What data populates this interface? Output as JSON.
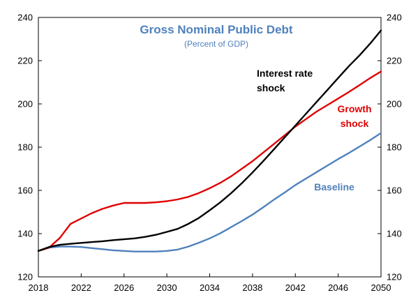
{
  "chart_data": {
    "type": "line",
    "title": "Gross Nominal Public Debt",
    "subtitle": "(Percent of GDP)",
    "title_color": "#4f81bd",
    "subtitle_color": "#4f81bd",
    "xlabel": "",
    "ylabel": "",
    "xlim": [
      2018,
      2050
    ],
    "ylim": [
      120,
      240
    ],
    "x_ticks": [
      2018,
      2022,
      2026,
      2030,
      2034,
      2038,
      2042,
      2046,
      2050
    ],
    "y_ticks": [
      120,
      140,
      160,
      180,
      200,
      220,
      240
    ],
    "y_axis_both_sides": true,
    "grid": false,
    "series": [
      {
        "name": "Baseline",
        "color": "#4f81bd",
        "x": [
          2018,
          2019,
          2020,
          2021,
          2022,
          2023,
          2024,
          2025,
          2026,
          2027,
          2028,
          2029,
          2030,
          2031,
          2032,
          2033,
          2034,
          2035,
          2036,
          2037,
          2038,
          2039,
          2040,
          2041,
          2042,
          2043,
          2044,
          2045,
          2046,
          2047,
          2048,
          2049,
          2050
        ],
        "values": [
          132,
          133.5,
          134,
          134,
          133.8,
          133.3,
          132.8,
          132.3,
          132,
          131.7,
          131.7,
          131.7,
          132,
          132.6,
          134,
          135.8,
          137.8,
          140.2,
          143,
          145.8,
          148.8,
          152.2,
          155.7,
          159,
          162.5,
          165.5,
          168.5,
          171.5,
          174.5,
          177.3,
          180.3,
          183.3,
          186.5
        ],
        "label": "Baseline",
        "label_color": "#4f81bd"
      },
      {
        "name": "Growth shock",
        "color": "#e00000",
        "x": [
          2018,
          2019,
          2020,
          2021,
          2022,
          2023,
          2024,
          2025,
          2026,
          2027,
          2028,
          2029,
          2030,
          2031,
          2032,
          2033,
          2034,
          2035,
          2036,
          2037,
          2038,
          2039,
          2040,
          2041,
          2042,
          2043,
          2044,
          2045,
          2046,
          2047,
          2048,
          2049,
          2050
        ],
        "values": [
          132,
          133.5,
          138,
          144.5,
          147,
          149.5,
          151.5,
          153,
          154.2,
          154.2,
          154.2,
          154.5,
          155,
          155.8,
          157,
          158.8,
          161,
          163.5,
          166.5,
          170,
          173.5,
          177.5,
          181.5,
          185.5,
          189.5,
          193,
          196.5,
          199.5,
          202.5,
          205.5,
          208.7,
          212,
          215
        ],
        "label": [
          "Growth",
          "shock"
        ],
        "label_color": "#e00000"
      },
      {
        "name": "Interest rate shock",
        "color": "#000000",
        "x": [
          2018,
          2019,
          2020,
          2021,
          2022,
          2023,
          2024,
          2025,
          2026,
          2027,
          2028,
          2029,
          2030,
          2031,
          2032,
          2033,
          2034,
          2035,
          2036,
          2037,
          2038,
          2039,
          2040,
          2041,
          2042,
          2043,
          2044,
          2045,
          2046,
          2047,
          2048,
          2049,
          2050
        ],
        "values": [
          132,
          133.8,
          134.8,
          135.3,
          135.7,
          136.1,
          136.5,
          137,
          137.4,
          137.8,
          138.5,
          139.5,
          140.8,
          142.2,
          144.5,
          147.3,
          150.8,
          154.5,
          158.7,
          163.3,
          168.3,
          173.5,
          179,
          184.5,
          190,
          195.5,
          201,
          206.5,
          212,
          217.5,
          222.5,
          228,
          234
        ],
        "label": [
          "Interest rate",
          "shock"
        ],
        "label_color": "#000000"
      }
    ]
  }
}
